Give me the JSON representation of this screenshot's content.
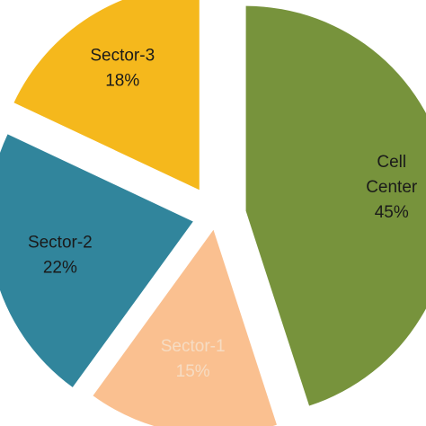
{
  "chart_data": {
    "type": "pie",
    "title": "",
    "slices": [
      {
        "name": "Cell Center",
        "label_lines": [
          "Cell",
          "Center"
        ],
        "value": 45,
        "value_label": "45%",
        "color": "#77933c",
        "text_color": "#1a1a1a"
      },
      {
        "name": "Sector-1",
        "label_lines": [
          "Sector-1"
        ],
        "value": 15,
        "value_label": "15%",
        "color": "#fac090",
        "text_color": "#f6dcc3"
      },
      {
        "name": "Sector-2",
        "label_lines": [
          "Sector-2"
        ],
        "value": 22,
        "value_label": "22%",
        "color": "#31859c",
        "text_color": "#1a1a1a"
      },
      {
        "name": "Sector-3",
        "label_lines": [
          "Sector-3"
        ],
        "value": 18,
        "value_label": "18%",
        "color": "#f5b81c",
        "text_color": "#1a1a1a"
      }
    ],
    "start_angle_deg": 0,
    "direction": "clockwise",
    "exploded": true,
    "legend": "none"
  }
}
